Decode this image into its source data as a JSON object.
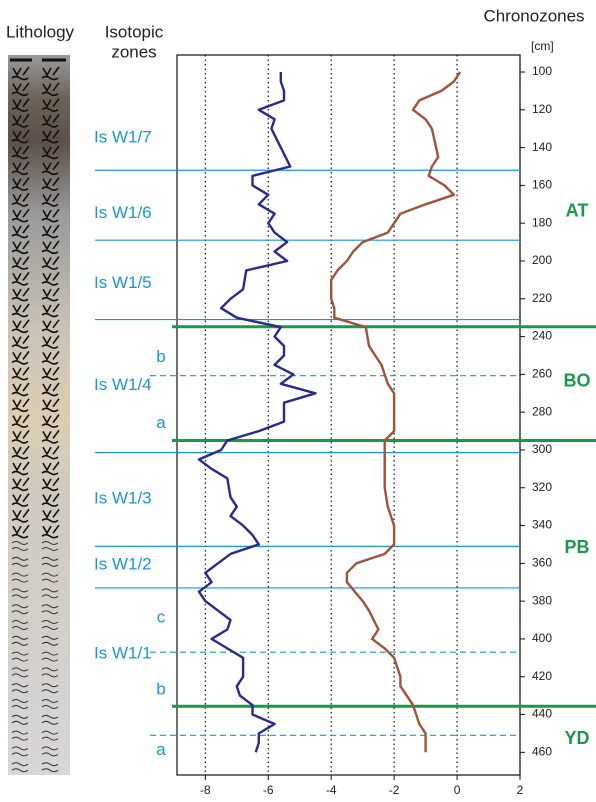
{
  "chart_data": {
    "type": "line",
    "lithology_title": "Lithology",
    "zones_title": [
      "Isotopic",
      "zones"
    ],
    "chrono_title": "Chronozones",
    "ylabel": "[cm]",
    "xlim": [
      -8.9,
      2
    ],
    "xticks": [
      -8,
      -6,
      -4,
      -2,
      0,
      2
    ],
    "ylim": [
      91,
      472
    ],
    "y_inverted": true,
    "yticks": [
      100,
      120,
      140,
      160,
      180,
      200,
      220,
      240,
      260,
      280,
      300,
      320,
      340,
      360,
      380,
      400,
      420,
      440,
      460
    ],
    "grid": true,
    "series": [
      {
        "color": "#2a2a8c",
        "depth": [
          100,
          105,
          110,
          115,
          120,
          125,
          130,
          150,
          155,
          160,
          165,
          170,
          175,
          180,
          185,
          190,
          195,
          200,
          205,
          215,
          220,
          225,
          230,
          235,
          240,
          245,
          250,
          255,
          260,
          265,
          270,
          275,
          285,
          290,
          295,
          300,
          305,
          310,
          315,
          325,
          330,
          335,
          340,
          345,
          350,
          355,
          365,
          370,
          375,
          380,
          390,
          395,
          400,
          405,
          410,
          420,
          425,
          430,
          435,
          440,
          445,
          450,
          455,
          460
        ],
        "values": [
          -5.6,
          -5.6,
          -5.5,
          -5.5,
          -6.3,
          -5.8,
          -5.9,
          -5.3,
          -6.5,
          -6.5,
          -6.0,
          -6.3,
          -5.8,
          -6.0,
          -5.8,
          -5.4,
          -5.8,
          -5.4,
          -6.7,
          -6.8,
          -7.2,
          -7.5,
          -7.0,
          -5.6,
          -5.8,
          -5.5,
          -5.5,
          -5.8,
          -5.2,
          -5.6,
          -4.5,
          -5.5,
          -5.5,
          -6.3,
          -7.3,
          -7.5,
          -8.2,
          -7.8,
          -7.3,
          -7.2,
          -7.0,
          -7.2,
          -6.8,
          -6.5,
          -6.3,
          -7.2,
          -8.0,
          -7.8,
          -8.2,
          -8.0,
          -7.2,
          -7.3,
          -7.8,
          -7.3,
          -6.8,
          -6.8,
          -7.0,
          -6.9,
          -6.5,
          -6.5,
          -5.8,
          -6.3,
          -6.3,
          -6.4
        ]
      },
      {
        "color": "#a0523a",
        "depth": [
          100,
          105,
          110,
          115,
          120,
          125,
          130,
          145,
          150,
          155,
          160,
          165,
          170,
          175,
          180,
          185,
          190,
          195,
          200,
          205,
          210,
          220,
          225,
          230,
          235,
          245,
          250,
          255,
          265,
          270,
          280,
          290,
          295,
          300,
          320,
          330,
          340,
          350,
          355,
          360,
          365,
          370,
          380,
          385,
          395,
          400,
          405,
          410,
          420,
          425,
          430,
          435,
          440,
          445,
          450,
          460
        ],
        "values": [
          0.1,
          -0.1,
          -0.5,
          -1.2,
          -1.4,
          -1.0,
          -0.8,
          -0.6,
          -0.8,
          -0.9,
          -0.4,
          -0.1,
          -1.0,
          -1.8,
          -2.0,
          -2.2,
          -3.0,
          -3.3,
          -3.5,
          -3.8,
          -4.0,
          -4.0,
          -3.9,
          -3.9,
          -2.9,
          -2.8,
          -2.6,
          -2.4,
          -2.2,
          -2.0,
          -2.0,
          -2.0,
          -2.3,
          -2.3,
          -2.3,
          -2.2,
          -2.0,
          -2.0,
          -2.3,
          -3.2,
          -3.5,
          -3.5,
          -3.0,
          -2.8,
          -2.5,
          -2.7,
          -2.3,
          -2.0,
          -1.8,
          -1.8,
          -1.6,
          -1.4,
          -1.3,
          -1.2,
          -1.0,
          -1.0
        ]
      }
    ],
    "zone_boundaries": [
      {
        "depth": 152,
        "style": "solid"
      },
      {
        "depth": 189,
        "style": "solid"
      },
      {
        "depth": 231,
        "style": "solid"
      },
      {
        "depth": 260.7,
        "style": "dashed"
      },
      {
        "depth": 301.4,
        "style": "solid"
      },
      {
        "depth": 351,
        "style": "solid"
      },
      {
        "depth": 373,
        "style": "solid"
      },
      {
        "depth": 407,
        "style": "dashed"
      },
      {
        "depth": 451,
        "style": "dashed"
      }
    ],
    "zone_labels": [
      {
        "label": "Is W1/7",
        "depth": 135
      },
      {
        "label": "Is W1/6",
        "depth": 175
      },
      {
        "label": "Is W1/5",
        "depth": 212
      },
      {
        "label": "b",
        "depth": 251
      },
      {
        "label": "Is W1/4",
        "depth": 266
      },
      {
        "label": "a",
        "depth": 286
      },
      {
        "label": "Is W1/3",
        "depth": 326
      },
      {
        "label": "Is W1/2",
        "depth": 361
      },
      {
        "label": "c",
        "depth": 389
      },
      {
        "label": "Is W1/1",
        "depth": 408
      },
      {
        "label": "b",
        "depth": 427
      },
      {
        "label": "a",
        "depth": 459
      }
    ],
    "chrono_color": "#17994a",
    "zone_color": "#1a96cf",
    "chrono_boundaries": [
      234.8,
      295,
      435.6
    ],
    "chrono_labels": [
      {
        "label": "AT",
        "depth": 174
      },
      {
        "label": "BO",
        "depth": 264
      },
      {
        "label": "PB",
        "depth": 352
      },
      {
        "label": "YD",
        "depth": 453
      }
    ]
  }
}
